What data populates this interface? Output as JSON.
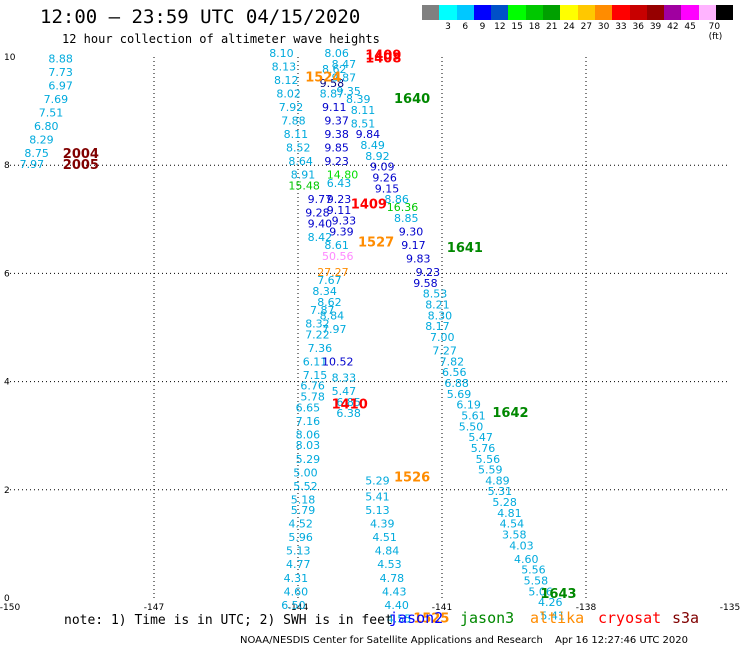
{
  "title": "12:00 – 23:59 UTC 04/15/2020",
  "subtitle": "12 hour collection of altimeter wave heights",
  "scale": {
    "colors": [
      "#808080",
      "#00ffff",
      "#00c8ff",
      "#0000ff",
      "#0050c8",
      "#00ff00",
      "#00c800",
      "#00a000",
      "#ffff00",
      "#ffc800",
      "#ff8c00",
      "#ff0000",
      "#c80000",
      "#960000",
      "#a000a0",
      "#ff00ff",
      "#ffb4ff",
      "#000000"
    ],
    "labels": [
      "3",
      "6",
      "9",
      "12",
      "15",
      "18",
      "21",
      "24",
      "27",
      "30",
      "33",
      "36",
      "39",
      "42",
      "45",
      "70 (ft)"
    ]
  },
  "axes": {
    "x_ticks": [
      "-150",
      "-147",
      "-144",
      "-141",
      "-138",
      "-135"
    ],
    "y_ticks": [
      "0",
      "2",
      "4",
      "6",
      "8",
      "10"
    ]
  },
  "labels": [
    {
      "t": "8.88",
      "c": "#00aadd",
      "lon": -149.2,
      "lat": 9.9
    },
    {
      "t": "7.73",
      "c": "#00aadd",
      "lon": -149.2,
      "lat": 9.65
    },
    {
      "t": "6.97",
      "c": "#00aadd",
      "lon": -149.2,
      "lat": 9.4
    },
    {
      "t": "7.69",
      "c": "#00aadd",
      "lon": -149.3,
      "lat": 9.15
    },
    {
      "t": "7.51",
      "c": "#00aadd",
      "lon": -149.4,
      "lat": 8.9
    },
    {
      "t": "6.80",
      "c": "#00aadd",
      "lon": -149.5,
      "lat": 8.65
    },
    {
      "t": "8.29",
      "c": "#00aadd",
      "lon": -149.6,
      "lat": 8.4
    },
    {
      "t": "8.75",
      "c": "#00aadd",
      "lon": -149.7,
      "lat": 8.15
    },
    {
      "t": "7.97",
      "c": "#00aadd",
      "lon": -149.8,
      "lat": 7.95
    },
    {
      "t": "2004",
      "c": "#800000",
      "lon": -148.9,
      "lat": 8.13
    },
    {
      "t": "2005",
      "c": "#800000",
      "lon": -148.9,
      "lat": 7.93
    },
    {
      "t": "8.10",
      "c": "#00aadd",
      "lon": -144.6,
      "lat": 10.0
    },
    {
      "t": "8.13",
      "c": "#00aadd",
      "lon": -144.55,
      "lat": 9.75
    },
    {
      "t": "8.12",
      "c": "#00aadd",
      "lon": -144.5,
      "lat": 9.5
    },
    {
      "t": "8.02",
      "c": "#00aadd",
      "lon": -144.45,
      "lat": 9.25
    },
    {
      "t": "7.92",
      "c": "#00aadd",
      "lon": -144.4,
      "lat": 9.0
    },
    {
      "t": "7.88",
      "c": "#00aadd",
      "lon": -144.35,
      "lat": 8.75
    },
    {
      "t": "8.11",
      "c": "#00aadd",
      "lon": -144.3,
      "lat": 8.5
    },
    {
      "t": "8.52",
      "c": "#00aadd",
      "lon": -144.25,
      "lat": 8.25
    },
    {
      "t": "8.64",
      "c": "#00aadd",
      "lon": -144.2,
      "lat": 8.0
    },
    {
      "t": "8.91",
      "c": "#00aadd",
      "lon": -144.15,
      "lat": 7.75
    },
    {
      "t": "15.48",
      "c": "#00c800",
      "lon": -144.2,
      "lat": 7.55
    },
    {
      "t": "9.77",
      "c": "#0000cc",
      "lon": -143.8,
      "lat": 7.3
    },
    {
      "t": "9.23",
      "c": "#0000cc",
      "lon": -143.4,
      "lat": 7.3
    },
    {
      "t": "9.28",
      "c": "#0000cc",
      "lon": -143.85,
      "lat": 7.05
    },
    {
      "t": "9.11",
      "c": "#0000cc",
      "lon": -143.4,
      "lat": 7.1
    },
    {
      "t": "9.40",
      "c": "#0000cc",
      "lon": -143.8,
      "lat": 6.85
    },
    {
      "t": "9.33",
      "c": "#0000cc",
      "lon": -143.3,
      "lat": 6.9
    },
    {
      "t": "8.42",
      "c": "#00aadd",
      "lon": -143.8,
      "lat": 6.6
    },
    {
      "t": "9.39",
      "c": "#0000cc",
      "lon": -143.35,
      "lat": 6.7
    },
    {
      "t": "8.61",
      "c": "#00aadd",
      "lon": -143.45,
      "lat": 6.45
    },
    {
      "t": "50.56",
      "c": "#ff88ff",
      "lon": -143.5,
      "lat": 6.25
    },
    {
      "t": "27.27",
      "c": "#ff8c00",
      "lon": -143.6,
      "lat": 5.95
    },
    {
      "t": "7.67",
      "c": "#00aadd",
      "lon": -143.6,
      "lat": 5.8
    },
    {
      "t": "8.34",
      "c": "#00aadd",
      "lon": -143.7,
      "lat": 5.6
    },
    {
      "t": "8.62",
      "c": "#00aadd",
      "lon": -143.6,
      "lat": 5.4
    },
    {
      "t": "7.87",
      "c": "#00aadd",
      "lon": -143.75,
      "lat": 5.25
    },
    {
      "t": "8.84",
      "c": "#00aadd",
      "lon": -143.55,
      "lat": 5.15
    },
    {
      "t": "8.32",
      "c": "#00aadd",
      "lon": -143.85,
      "lat": 5.0
    },
    {
      "t": "7.97",
      "c": "#00aadd",
      "lon": -143.5,
      "lat": 4.9
    },
    {
      "t": "7.22",
      "c": "#00aadd",
      "lon": -143.85,
      "lat": 4.8
    },
    {
      "t": "7.36",
      "c": "#00aadd",
      "lon": -143.8,
      "lat": 4.55
    },
    {
      "t": "6.11",
      "c": "#00aadd",
      "lon": -143.9,
      "lat": 4.3
    },
    {
      "t": "10.52",
      "c": "#0000cc",
      "lon": -143.5,
      "lat": 4.3
    },
    {
      "t": "7.15",
      "c": "#00aadd",
      "lon": -143.9,
      "lat": 4.05
    },
    {
      "t": "8.33",
      "c": "#00aadd",
      "lon": -143.3,
      "lat": 4.0
    },
    {
      "t": "6.76",
      "c": "#00aadd",
      "lon": -143.95,
      "lat": 3.85
    },
    {
      "t": "5.47",
      "c": "#00aadd",
      "lon": -143.3,
      "lat": 3.75
    },
    {
      "t": "5.78",
      "c": "#00aadd",
      "lon": -143.95,
      "lat": 3.65
    },
    {
      "t": "6.85",
      "c": "#00aadd",
      "lon": -143.2,
      "lat": 3.55
    },
    {
      "t": "6.65",
      "c": "#00aadd",
      "lon": -144.05,
      "lat": 3.45
    },
    {
      "t": "6.38",
      "c": "#00aadd",
      "lon": -143.2,
      "lat": 3.35
    },
    {
      "t": "7.16",
      "c": "#00aadd",
      "lon": -144.05,
      "lat": 3.2
    },
    {
      "t": "8.06",
      "c": "#00aadd",
      "lon": -144.05,
      "lat": 2.95
    },
    {
      "t": "8.03",
      "c": "#00aadd",
      "lon": -144.05,
      "lat": 2.75
    },
    {
      "t": "5.29",
      "c": "#00aadd",
      "lon": -144.05,
      "lat": 2.5
    },
    {
      "t": "5.00",
      "c": "#00aadd",
      "lon": -144.1,
      "lat": 2.25
    },
    {
      "t": "5.52",
      "c": "#00aadd",
      "lon": -144.1,
      "lat": 2.0
    },
    {
      "t": "5.18",
      "c": "#00aadd",
      "lon": -144.15,
      "lat": 1.75
    },
    {
      "t": "5.79",
      "c": "#00aadd",
      "lon": -144.15,
      "lat": 1.55
    },
    {
      "t": "4.52",
      "c": "#00aadd",
      "lon": -144.2,
      "lat": 1.3
    },
    {
      "t": "5.96",
      "c": "#00aadd",
      "lon": -144.2,
      "lat": 1.05
    },
    {
      "t": "5.13",
      "c": "#00aadd",
      "lon": -144.25,
      "lat": 0.8
    },
    {
      "t": "4.77",
      "c": "#00aadd",
      "lon": -144.25,
      "lat": 0.55
    },
    {
      "t": "4.31",
      "c": "#00aadd",
      "lon": -144.3,
      "lat": 0.3
    },
    {
      "t": "4.60",
      "c": "#00aadd",
      "lon": -144.3,
      "lat": 0.05
    },
    {
      "t": "6.50",
      "c": "#00aadd",
      "lon": -144.35,
      "lat": -0.2
    },
    {
      "t": "8.06",
      "c": "#00aadd",
      "lon": -143.45,
      "lat": 10.0
    },
    {
      "t": "8.47",
      "c": "#00aadd",
      "lon": -143.3,
      "lat": 9.8
    },
    {
      "t": "8.62",
      "c": "#00aadd",
      "lon": -143.5,
      "lat": 9.7
    },
    {
      "t": "9.87",
      "c": "#00aadd",
      "lon": -143.3,
      "lat": 9.55
    },
    {
      "t": "9.58",
      "c": "#000080",
      "lon": -143.55,
      "lat": 9.45
    },
    {
      "t": "9.35",
      "c": "#00aadd",
      "lon": -143.2,
      "lat": 9.3
    },
    {
      "t": "8.87",
      "c": "#00aadd",
      "lon": -143.55,
      "lat": 9.25
    },
    {
      "t": "8.39",
      "c": "#00aadd",
      "lon": -143.0,
      "lat": 9.15
    },
    {
      "t": "9.11",
      "c": "#0000cc",
      "lon": -143.5,
      "lat": 9.0
    },
    {
      "t": "8.11",
      "c": "#00aadd",
      "lon": -142.9,
      "lat": 8.95
    },
    {
      "t": "9.37",
      "c": "#0000cc",
      "lon": -143.45,
      "lat": 8.75
    },
    {
      "t": "8.51",
      "c": "#00aadd",
      "lon": -142.9,
      "lat": 8.7
    },
    {
      "t": "9.38",
      "c": "#0000cc",
      "lon": -143.45,
      "lat": 8.5
    },
    {
      "t": "9.84",
      "c": "#0000cc",
      "lon": -142.8,
      "lat": 8.5
    },
    {
      "t": "9.85",
      "c": "#0000cc",
      "lon": -143.45,
      "lat": 8.25
    },
    {
      "t": "8.49",
      "c": "#00aadd",
      "lon": -142.7,
      "lat": 8.3
    },
    {
      "t": "9.23",
      "c": "#0000cc",
      "lon": -143.45,
      "lat": 8.0
    },
    {
      "t": "8.92",
      "c": "#00aadd",
      "lon": -142.6,
      "lat": 8.1
    },
    {
      "t": "14.80",
      "c": "#00dd00",
      "lon": -143.4,
      "lat": 7.75
    },
    {
      "t": "9.09",
      "c": "#0000cc",
      "lon": -142.5,
      "lat": 7.9
    },
    {
      "t": "6.43",
      "c": "#00aadd",
      "lon": -143.4,
      "lat": 7.6
    },
    {
      "t": "9.26",
      "c": "#0000cc",
      "lon": -142.45,
      "lat": 7.7
    },
    {
      "t": "9.15",
      "c": "#0000cc",
      "lon": -142.4,
      "lat": 7.5
    },
    {
      "t": "8.86",
      "c": "#00aadd",
      "lon": -142.2,
      "lat": 7.3
    },
    {
      "t": "16.36",
      "c": "#00c800",
      "lon": -142.15,
      "lat": 7.15
    },
    {
      "t": "8.85",
      "c": "#00aadd",
      "lon": -142.0,
      "lat": 6.95
    },
    {
      "t": "9.30",
      "c": "#0000cc",
      "lon": -141.9,
      "lat": 6.7
    },
    {
      "t": "9.17",
      "c": "#0000cc",
      "lon": -141.85,
      "lat": 6.45
    },
    {
      "t": "9.83",
      "c": "#0000cc",
      "lon": -141.75,
      "lat": 6.2
    },
    {
      "t": "9.23",
      "c": "#0000cc",
      "lon": -141.55,
      "lat": 5.95
    },
    {
      "t": "9.58",
      "c": "#0000cc",
      "lon": -141.6,
      "lat": 5.75
    },
    {
      "t": "8.53",
      "c": "#00aadd",
      "lon": -141.4,
      "lat": 5.55
    },
    {
      "t": "8.21",
      "c": "#00aadd",
      "lon": -141.35,
      "lat": 5.35
    },
    {
      "t": "8.30",
      "c": "#00aadd",
      "lon": -141.3,
      "lat": 5.15
    },
    {
      "t": "8.17",
      "c": "#00aadd",
      "lon": -141.35,
      "lat": 4.95
    },
    {
      "t": "7.00",
      "c": "#00aadd",
      "lon": -141.25,
      "lat": 4.75
    },
    {
      "t": "7.27",
      "c": "#00aadd",
      "lon": -141.2,
      "lat": 4.5
    },
    {
      "t": "7.82",
      "c": "#00aadd",
      "lon": -141.05,
      "lat": 4.3
    },
    {
      "t": "6.56",
      "c": "#00aadd",
      "lon": -141.0,
      "lat": 4.1
    },
    {
      "t": "6.88",
      "c": "#00aadd",
      "lon": -140.95,
      "lat": 3.9
    },
    {
      "t": "5.69",
      "c": "#00aadd",
      "lon": -140.9,
      "lat": 3.7
    },
    {
      "t": "6.19",
      "c": "#00aadd",
      "lon": -140.7,
      "lat": 3.5
    },
    {
      "t": "5.61",
      "c": "#00aadd",
      "lon": -140.6,
      "lat": 3.3
    },
    {
      "t": "5.50",
      "c": "#00aadd",
      "lon": -140.65,
      "lat": 3.1
    },
    {
      "t": "5.47",
      "c": "#00aadd",
      "lon": -140.45,
      "lat": 2.9
    },
    {
      "t": "5.76",
      "c": "#00aadd",
      "lon": -140.4,
      "lat": 2.7
    },
    {
      "t": "5.56",
      "c": "#00aadd",
      "lon": -140.3,
      "lat": 2.5
    },
    {
      "t": "5.59",
      "c": "#00aadd",
      "lon": -140.25,
      "lat": 2.3
    },
    {
      "t": "4.89",
      "c": "#00aadd",
      "lon": -140.1,
      "lat": 2.1
    },
    {
      "t": "5.31",
      "c": "#00aadd",
      "lon": -140.05,
      "lat": 1.9
    },
    {
      "t": "5.28",
      "c": "#00aadd",
      "lon": -139.95,
      "lat": 1.7
    },
    {
      "t": "4.81",
      "c": "#00aadd",
      "lon": -139.85,
      "lat": 1.5
    },
    {
      "t": "4.54",
      "c": "#00aadd",
      "lon": -139.8,
      "lat": 1.3
    },
    {
      "t": "3.58",
      "c": "#00aadd",
      "lon": -139.75,
      "lat": 1.1
    },
    {
      "t": "4.03",
      "c": "#00aadd",
      "lon": -139.6,
      "lat": 0.9
    },
    {
      "t": "4.60",
      "c": "#00aadd",
      "lon": -139.5,
      "lat": 0.65
    },
    {
      "t": "5.56",
      "c": "#00aadd",
      "lon": -139.35,
      "lat": 0.45
    },
    {
      "t": "5.58",
      "c": "#00aadd",
      "lon": -139.3,
      "lat": 0.25
    },
    {
      "t": "5.06",
      "c": "#00aadd",
      "lon": -139.2,
      "lat": 0.05
    },
    {
      "t": "4.26",
      "c": "#00aadd",
      "lon": -139.0,
      "lat": -0.15
    },
    {
      "t": "5.41",
      "c": "#00aadd",
      "lon": -138.95,
      "lat": -0.4
    },
    {
      "t": "5.29",
      "c": "#00aadd",
      "lon": -142.6,
      "lat": 2.1
    },
    {
      "t": "5.41",
      "c": "#00aadd",
      "lon": -142.6,
      "lat": 1.8
    },
    {
      "t": "5.13",
      "c": "#00aadd",
      "lon": -142.6,
      "lat": 1.55
    },
    {
      "t": "4.39",
      "c": "#00aadd",
      "lon": -142.5,
      "lat": 1.3
    },
    {
      "t": "4.51",
      "c": "#00aadd",
      "lon": -142.45,
      "lat": 1.05
    },
    {
      "t": "4.84",
      "c": "#00aadd",
      "lon": -142.4,
      "lat": 0.8
    },
    {
      "t": "4.53",
      "c": "#00aadd",
      "lon": -142.35,
      "lat": 0.55
    },
    {
      "t": "4.78",
      "c": "#00aadd",
      "lon": -142.3,
      "lat": 0.3
    },
    {
      "t": "4.43",
      "c": "#00aadd",
      "lon": -142.25,
      "lat": 0.05
    },
    {
      "t": "4.40",
      "c": "#00aadd",
      "lon": -142.2,
      "lat": -0.2
    },
    {
      "t": "4.55",
      "c": "#00aadd",
      "lon": -142.15,
      "lat": -0.45
    },
    {
      "t": "1409",
      "c": "#ff0000",
      "lon": -142.6,
      "lat": 9.95
    },
    {
      "t": "1408",
      "c": "#ff0000",
      "lon": -142.6,
      "lat": 9.9
    },
    {
      "t": "1524",
      "c": "#ff8c00",
      "lon": -143.85,
      "lat": 9.55
    },
    {
      "t": "1640",
      "c": "#008800",
      "lon": -142.0,
      "lat": 9.15
    },
    {
      "t": "1409",
      "c": "#ff0000",
      "lon": -142.9,
      "lat": 7.2
    },
    {
      "t": "1527",
      "c": "#ff8c00",
      "lon": -142.75,
      "lat": 6.5
    },
    {
      "t": "1641",
      "c": "#008800",
      "lon": -140.9,
      "lat": 6.4
    },
    {
      "t": "1410",
      "c": "#ff0000",
      "lon": -143.3,
      "lat": 3.5
    },
    {
      "t": "1642",
      "c": "#008800",
      "lon": -139.95,
      "lat": 3.35
    },
    {
      "t": "1526",
      "c": "#ff8c00",
      "lon": -142.0,
      "lat": 2.15
    },
    {
      "t": "1643",
      "c": "#008800",
      "lon": -138.95,
      "lat": 0.0
    },
    {
      "t": "1525",
      "c": "#ff8c00",
      "lon": -141.6,
      "lat": -0.45
    }
  ],
  "footer": {
    "note": "note: 1) Time is in UTC; 2) SWH is in feet",
    "satellites": [
      {
        "name": "jason2",
        "color": "#0000ff"
      },
      {
        "name": "jason3",
        "color": "#008800"
      },
      {
        "name": "altika",
        "color": "#ff8c00"
      },
      {
        "name": "cryosat",
        "color": "#ff0000"
      },
      {
        "name": "s3a",
        "color": "#800000"
      }
    ],
    "credit": "NOAA/NESDIS Center for Satellite Applications and Research",
    "timestamp": "Apr 16 12:27:46 UTC 2020"
  }
}
